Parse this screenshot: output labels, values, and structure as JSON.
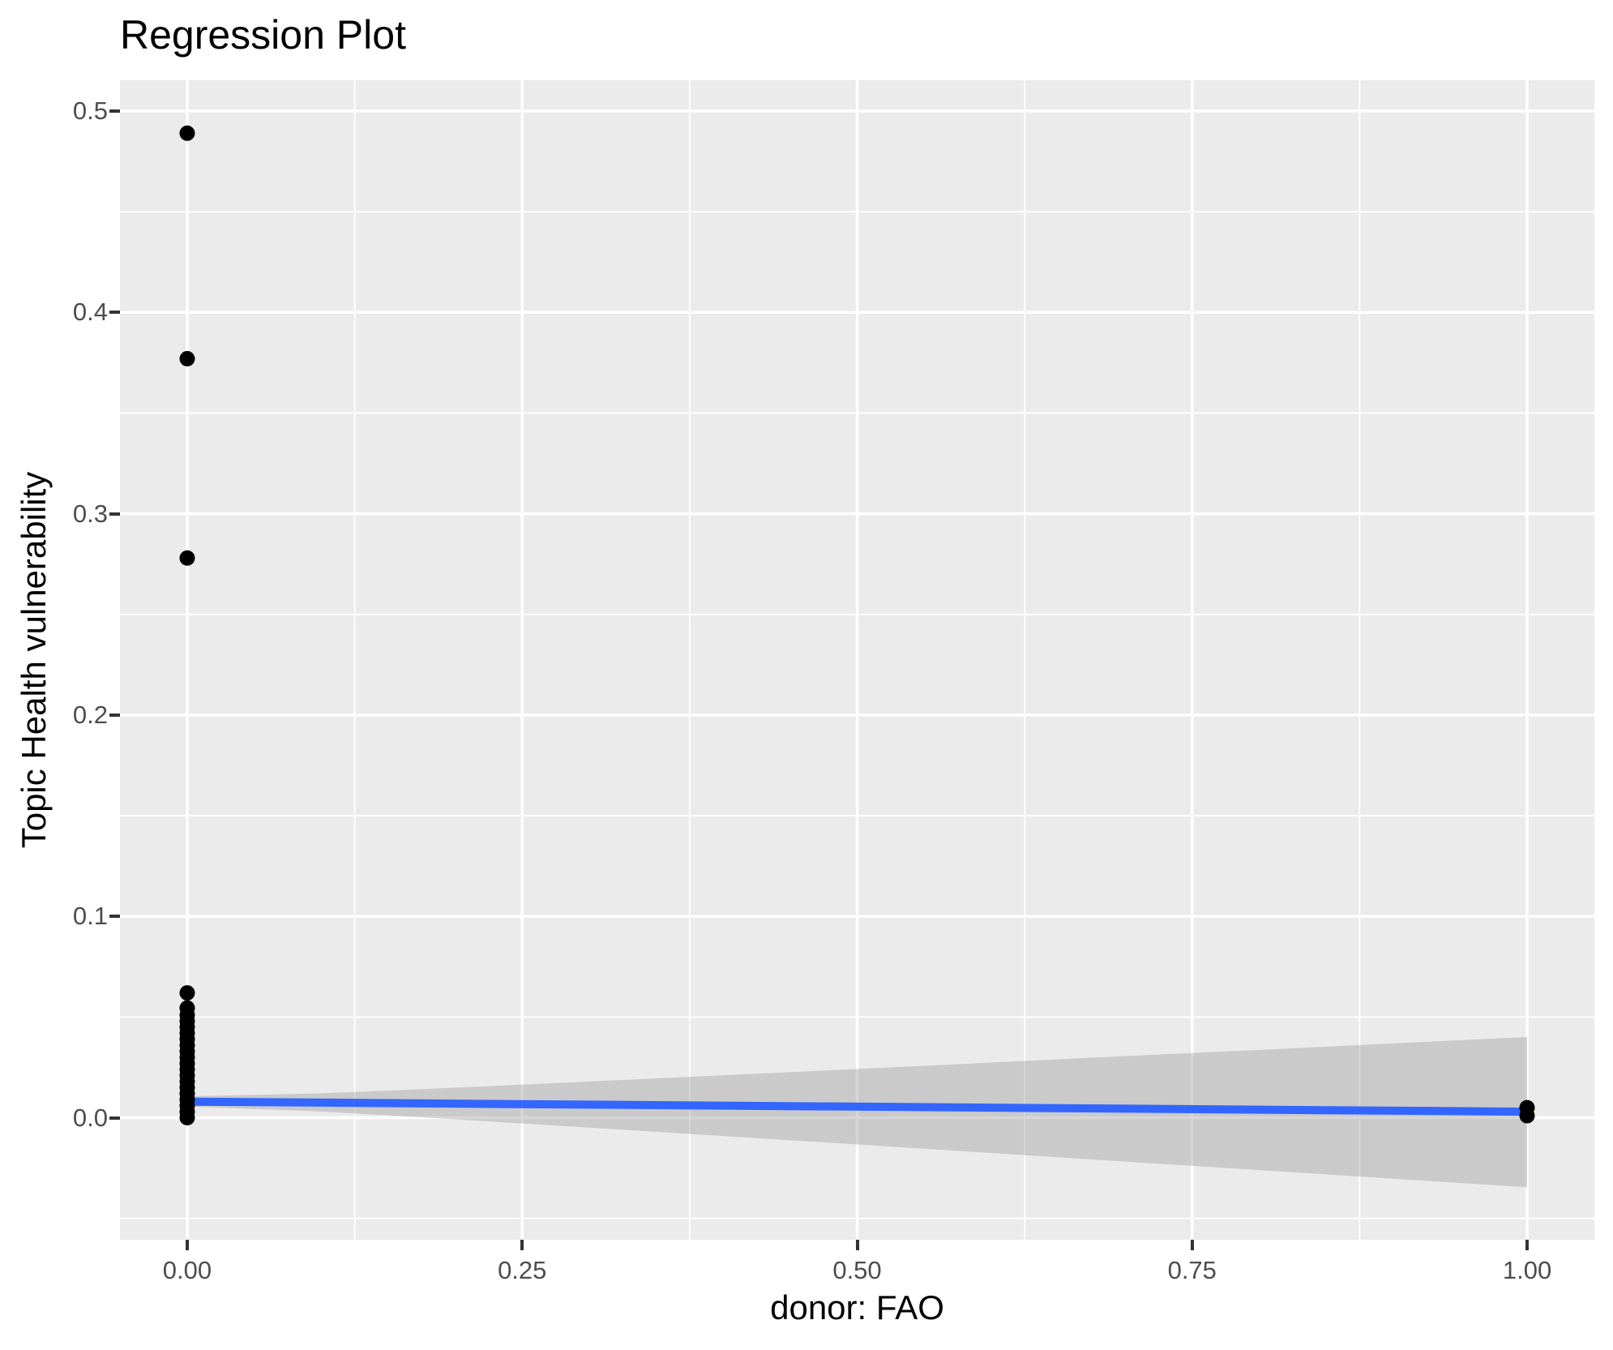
{
  "chart_data": {
    "type": "scatter",
    "title": "Regression Plot",
    "xlabel": "donor: FAO",
    "ylabel": "Topic Health vulnerability",
    "xlim": [
      -0.0502,
      1.0502
    ],
    "ylim": [
      -0.0606,
      0.5153
    ],
    "grid": true,
    "legend_position": "none",
    "x_ticks": [
      0.0,
      0.25,
      0.5,
      0.75,
      1.0
    ],
    "x_tick_labels": [
      "0.00",
      "0.25",
      "0.50",
      "0.75",
      "1.00"
    ],
    "x_minor_ticks": [
      0.125,
      0.375,
      0.625,
      0.875
    ],
    "y_ticks": [
      0.0,
      0.1,
      0.2,
      0.3,
      0.4,
      0.5
    ],
    "y_tick_labels": [
      "0.0",
      "0.1",
      "0.2",
      "0.3",
      "0.4",
      "0.5"
    ],
    "y_minor_ticks": [
      -0.05,
      0.05,
      0.15,
      0.25,
      0.35,
      0.45
    ],
    "points": [
      [
        0,
        0.489
      ],
      [
        0,
        0.377
      ],
      [
        0,
        0.278
      ],
      [
        0,
        0.062
      ],
      [
        0,
        0.0545
      ],
      [
        0,
        0.051
      ],
      [
        0,
        0.048
      ],
      [
        0,
        0.045
      ],
      [
        0,
        0.042
      ],
      [
        0,
        0.039
      ],
      [
        0,
        0.036
      ],
      [
        0,
        0.033
      ],
      [
        0,
        0.03
      ],
      [
        0,
        0.027
      ],
      [
        0,
        0.024
      ],
      [
        0,
        0.021
      ],
      [
        0,
        0.018
      ],
      [
        0,
        0.015
      ],
      [
        0,
        0.012
      ],
      [
        0,
        0.009
      ],
      [
        0,
        0.006
      ],
      [
        0,
        0.003
      ],
      [
        0,
        0.0
      ],
      [
        1,
        0.005
      ],
      [
        1,
        0.001
      ]
    ],
    "regression_line": {
      "x1": 0,
      "y1": 0.008,
      "x2": 1,
      "y2": 0.003
    },
    "confidence_band": {
      "x": [
        0,
        0.1,
        0.2,
        0.3,
        0.4,
        0.5,
        0.6,
        0.7,
        0.8,
        0.9,
        1.0
      ],
      "top": [
        0.0106,
        0.0121,
        0.0149,
        0.018,
        0.0211,
        0.0242,
        0.0274,
        0.0306,
        0.0337,
        0.0369,
        0.0401
      ],
      "bottom": [
        0.0056,
        0.0031,
        -0.0008,
        -0.0049,
        -0.0091,
        -0.0133,
        -0.0175,
        -0.0218,
        -0.026,
        -0.0303,
        -0.0345
      ]
    },
    "colors": {
      "panel_background": "#EBEBEB",
      "gridline": "#FFFFFF",
      "point": "#000000",
      "line": "#3366FF",
      "band": "rgba(153,153,153,0.4)",
      "tick_label": "#4D4D4D",
      "tick_mark": "#333333",
      "text": "#000000"
    }
  }
}
